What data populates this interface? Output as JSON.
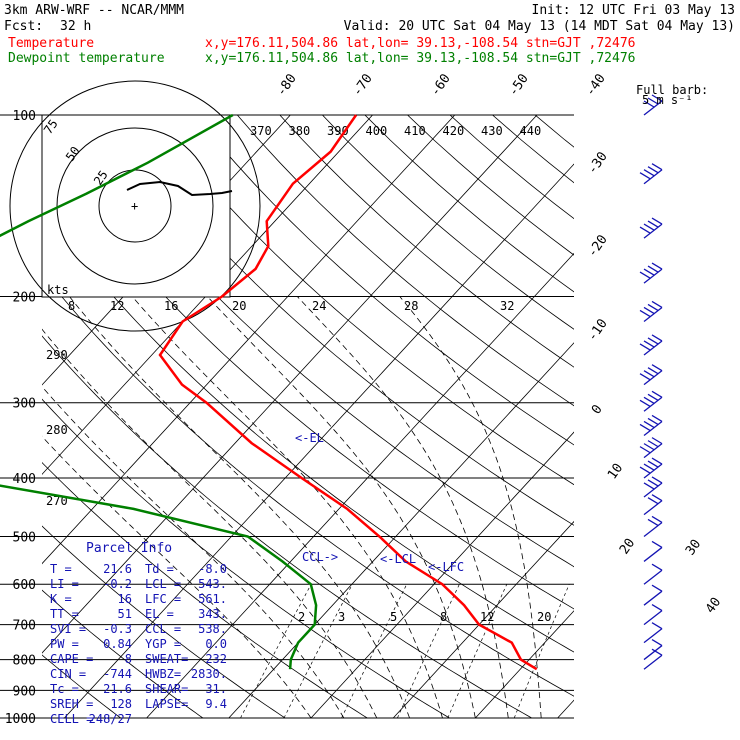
{
  "header": {
    "model": "3km ARW-WRF -- NCAR/MMM",
    "init": "Init: 12 UTC Fri 03 May 13",
    "fcst_label": "Fcst:",
    "fcst_hours": "32 h",
    "valid": "Valid: 20 UTC Sat 04 May 13 (14 MDT Sat 04 May 13)",
    "temp_label": "Temperature",
    "temp_info": "x,y=176.11,504.86   lat,lon= 39.13,-108.54   stn=GJT ,72476",
    "dew_label": "Dewpoint temperature",
    "dew_info": "x,y=176.11,504.86   lat,lon= 39.13,-108.54   stn=GJT ,72476"
  },
  "colors": {
    "temperature": "#ff0000",
    "dewpoint": "#008000",
    "wind": "#1414b4",
    "text": "#000000",
    "label_blue": "#1414b4"
  },
  "legend_barb": {
    "line1": "Full barb:",
    "line2": "5 m s⁻¹"
  },
  "hodograph": {
    "ring_labels": [
      "75",
      "50",
      "25"
    ],
    "units": "kts"
  },
  "parcel_info": {
    "title": "Parcel Info",
    "rows": [
      [
        "T  =",
        "21.6",
        "Td =",
        "-8.0"
      ],
      [
        "LI =",
        "-0.2",
        "LCL =",
        "543."
      ],
      [
        "K  =",
        "16",
        "LFC =",
        "561."
      ],
      [
        "TT =",
        "51",
        "EL =",
        "343."
      ],
      [
        "SVI =",
        "-0.3",
        "CCL =",
        "538."
      ],
      [
        "PW =",
        "0.84",
        "YGP =",
        "0.0"
      ],
      [
        "CAPE =",
        "8",
        "SWEAT=",
        "232"
      ],
      [
        "CIN =",
        "-744",
        "HWBZ=",
        "2830."
      ],
      [
        "Tc =",
        "21.6",
        "SHEAR=",
        "31."
      ],
      [
        "SREH =",
        "128",
        "LAPSE=",
        "9.4"
      ],
      [
        "CELL =",
        "248/27",
        "",
        ""
      ]
    ]
  },
  "levels": {
    "el": "<-EL",
    "ccl": "CCL->",
    "lcl": "<-LCL",
    "lfc": "<-LFC"
  },
  "chart_data": {
    "type": "line",
    "x": {
      "label": "",
      "units": "°C",
      "skewed": true
    },
    "y": {
      "label": "",
      "units": "hPa",
      "scale": "log"
    },
    "pressure_ticks": [
      "100",
      "200",
      "300",
      "400",
      "500",
      "600",
      "700",
      "800",
      "900",
      "1000"
    ],
    "isotherm_labels": [
      "-80",
      "-70",
      "-60",
      "-50",
      "-40",
      "-30",
      "-20",
      "-10",
      "0",
      "10",
      "20",
      "30",
      "40"
    ],
    "theta_labels": [
      "370",
      "380",
      "390",
      "400",
      "410",
      "420",
      "430",
      "440"
    ],
    "theta_side_labels": [
      "290",
      "280",
      "270"
    ],
    "mixing_ratio_upper": [
      "8",
      "12",
      "16",
      "20",
      "24",
      "28",
      "32"
    ],
    "mixing_ratio_lower": [
      "2",
      "3",
      "5",
      "8",
      "12",
      "20"
    ],
    "series": [
      {
        "name": "Temperature",
        "points": [
          [
            100,
            -62
          ],
          [
            115,
            -61
          ],
          [
            130,
            -62
          ],
          [
            150,
            -61
          ],
          [
            165,
            -58
          ],
          [
            180,
            -57
          ],
          [
            200,
            -58
          ],
          [
            220,
            -60
          ],
          [
            250,
            -59
          ],
          [
            280,
            -53
          ],
          [
            300,
            -48
          ],
          [
            350,
            -38
          ],
          [
            400,
            -28
          ],
          [
            450,
            -19
          ],
          [
            500,
            -12
          ],
          [
            550,
            -6
          ],
          [
            600,
            1
          ],
          [
            650,
            6
          ],
          [
            700,
            10
          ],
          [
            750,
            16
          ],
          [
            800,
            19
          ],
          [
            830,
            22
          ]
        ]
      },
      {
        "name": "Dewpoint temperature",
        "points": [
          [
            100,
            -77
          ],
          [
            120,
            -82
          ],
          [
            135,
            -86
          ],
          [
            150,
            -90
          ],
          [
            180,
            -96
          ],
          [
            200,
            -100
          ],
          [
            250,
            -96
          ],
          [
            300,
            -82
          ],
          [
            340,
            -78
          ],
          [
            380,
            -75
          ],
          [
            400,
            -70
          ],
          [
            450,
            -45
          ],
          [
            500,
            -28
          ],
          [
            550,
            -21
          ],
          [
            600,
            -15
          ],
          [
            650,
            -12
          ],
          [
            700,
            -10
          ],
          [
            750,
            -10
          ],
          [
            800,
            -9
          ],
          [
            830,
            -8
          ]
        ]
      }
    ],
    "wind_barbs": [
      {
        "p": 100,
        "speed": 30
      },
      {
        "p": 130,
        "speed": 35
      },
      {
        "p": 160,
        "speed": 35
      },
      {
        "p": 190,
        "speed": 40
      },
      {
        "p": 220,
        "speed": 40
      },
      {
        "p": 250,
        "speed": 40
      },
      {
        "p": 280,
        "speed": 35
      },
      {
        "p": 310,
        "speed": 35
      },
      {
        "p": 340,
        "speed": 40
      },
      {
        "p": 370,
        "speed": 35
      },
      {
        "p": 400,
        "speed": 35
      },
      {
        "p": 430,
        "speed": 30
      },
      {
        "p": 460,
        "speed": 20
      },
      {
        "p": 500,
        "speed": 15
      },
      {
        "p": 550,
        "speed": 10
      },
      {
        "p": 600,
        "speed": 10
      },
      {
        "p": 650,
        "speed": 10
      },
      {
        "p": 700,
        "speed": 10
      },
      {
        "p": 750,
        "speed": 10
      },
      {
        "p": 800,
        "speed": 10
      },
      {
        "p": 830,
        "speed": 10
      }
    ]
  }
}
